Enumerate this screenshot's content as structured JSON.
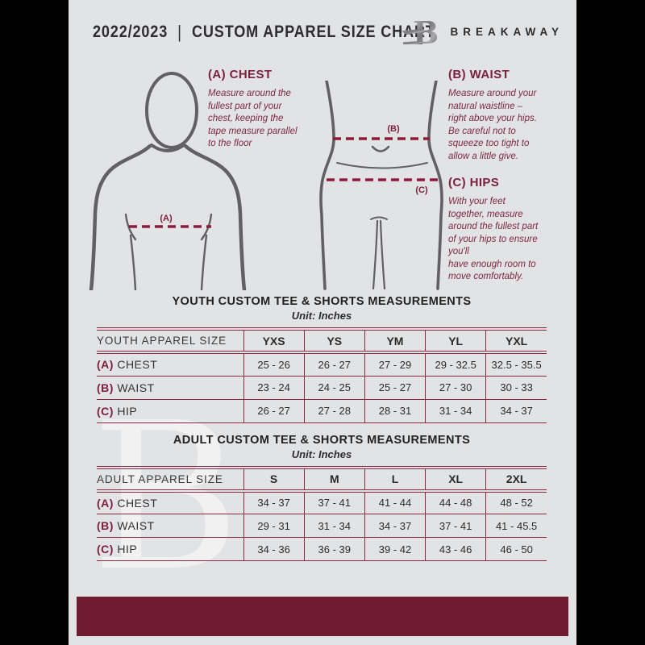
{
  "header": {
    "year": "2022/2023",
    "divider": "|",
    "title": "CUSTOM APPAREL SIZE CHART",
    "logo_letter": "B",
    "brand": "BREAKAWAY"
  },
  "instructions": [
    {
      "id": "A",
      "heading": "(A) CHEST",
      "body": "Measure around the\nfullest part of your\nchest, keeping the\ntape measure parallel\nto the floor"
    },
    {
      "id": "B",
      "heading": "(B) WAIST",
      "body": "Measure around your\nnatural waistline –\nright above your hips.\nBe careful not to\nsqueeze too tight to\nallow a little give."
    },
    {
      "id": "C",
      "heading": "(C) HIPS",
      "body": "With your feet\ntogether, measure\naround the fullest part\nof your hips to ensure\nyou'll\nhave enough room to\nmove comfortably."
    }
  ],
  "figure_labels": {
    "chest": "(A)",
    "waist": "(B)",
    "hip": "(C)"
  },
  "tables": [
    {
      "title": "YOUTH CUSTOM TEE & SHORTS MEASUREMENTS",
      "unit": "Unit: Inches",
      "size_col_header": "YOUTH APPAREL SIZE",
      "sizes": [
        "YXS",
        "YS",
        "YM",
        "YL",
        "YXL"
      ],
      "rows": [
        {
          "prefix": "(A)",
          "label": "CHEST",
          "values": [
            "25 - 26",
            "26 - 27",
            "27 - 29",
            "29 - 32.5",
            "32.5 - 35.5"
          ]
        },
        {
          "prefix": "(B)",
          "label": "WAIST",
          "values": [
            "23 - 24",
            "24 - 25",
            "25 - 27",
            "27 - 30",
            "30 - 33"
          ]
        },
        {
          "prefix": "(C)",
          "label": "HIP",
          "values": [
            "26 - 27",
            "27 - 28",
            "28 - 31",
            "31 - 34",
            "34 - 37"
          ]
        }
      ]
    },
    {
      "title": "ADULT CUSTOM TEE & SHORTS MEASUREMENTS",
      "unit": "Unit: Inches",
      "size_col_header": "ADULT APPAREL SIZE",
      "sizes": [
        "S",
        "M",
        "L",
        "XL",
        "2XL"
      ],
      "rows": [
        {
          "prefix": "(A)",
          "label": "CHEST",
          "values": [
            "34 - 37",
            "37 - 41",
            "41 - 44",
            "44 - 48",
            "48 - 52"
          ]
        },
        {
          "prefix": "(B)",
          "label": "WAIST",
          "values": [
            "29 - 31",
            "31 - 34",
            "34 - 37",
            "37 - 41",
            "41 - 45.5"
          ]
        },
        {
          "prefix": "(C)",
          "label": "HIP",
          "values": [
            "34 - 36",
            "36 - 39",
            "39 - 42",
            "43 - 46",
            "46 - 50"
          ]
        }
      ]
    }
  ],
  "watermark": "B",
  "colors": {
    "flyer_bg": "#e2e3e5",
    "maroon_bar": "#6f1b31",
    "maroon_heading": "#7d2040",
    "maroon_body_text": "#7d2742",
    "table_line": "#8a2743",
    "dashed_line": "#8c1c3a",
    "figure_gray": "#606065",
    "dark_text": "#2d2d2f"
  }
}
